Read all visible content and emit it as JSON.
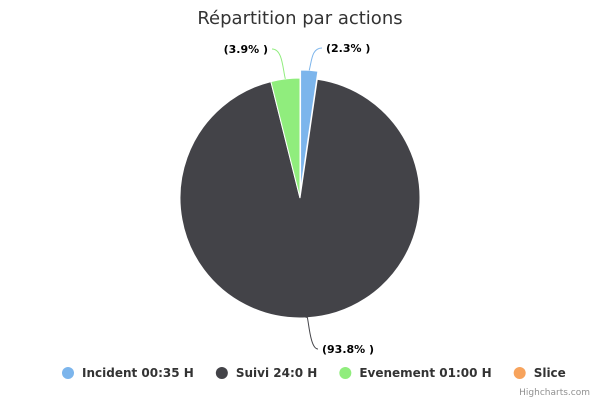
{
  "chart_data": {
    "type": "pie",
    "title": "Répartition par actions",
    "series": [
      {
        "name": "Incident 00:35 H",
        "value": 2.3,
        "label": "(2.3% )",
        "color": "#7cb5ec"
      },
      {
        "name": "Suivi 24:0 H",
        "value": 93.8,
        "label": "(93.8% )",
        "color": "#434348"
      },
      {
        "name": "Evenement 01:00 H",
        "value": 3.9,
        "label": "(3.9% )",
        "color": "#90ed7d"
      },
      {
        "name": "Slice",
        "value": 0,
        "label": "",
        "color": "#f7a35c"
      }
    ],
    "legend_position": "bottom"
  },
  "credits": "Highcharts.com"
}
